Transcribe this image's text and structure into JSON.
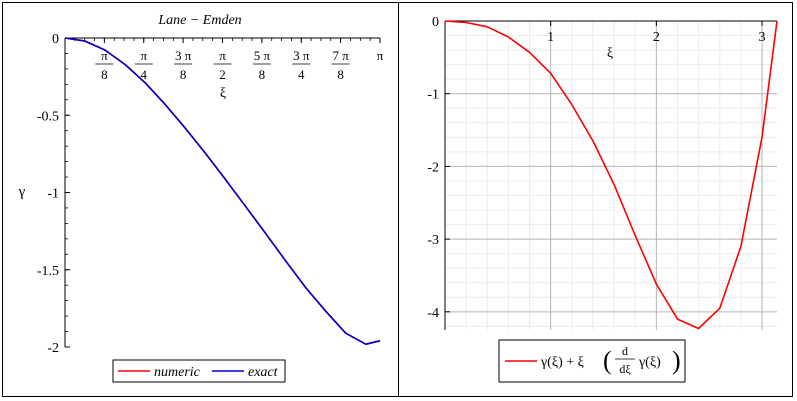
{
  "chart_data": [
    {
      "type": "line",
      "title": "Lane − Emden",
      "xlabel": "ξ",
      "ylabel": "γ",
      "xlim": [
        0,
        3.1416
      ],
      "ylim": [
        -2,
        0
      ],
      "x_ticks": [
        {
          "value": 0.3927,
          "num": "π",
          "den": "8"
        },
        {
          "value": 0.7854,
          "num": "π",
          "den": "4"
        },
        {
          "value": 1.1781,
          "num": "3 π",
          "den": "8"
        },
        {
          "value": 1.5708,
          "num": "π",
          "den": "2"
        },
        {
          "value": 1.9635,
          "num": "5 π",
          "den": "8"
        },
        {
          "value": 2.3562,
          "num": "3 π",
          "den": "4"
        },
        {
          "value": 2.7489,
          "num": "7 π",
          "den": "8"
        },
        {
          "value": 3.1416,
          "num": "π",
          "den": ""
        }
      ],
      "y_ticks": [
        {
          "value": 0,
          "label": "0"
        },
        {
          "value": -0.5,
          "label": "-0.5"
        },
        {
          "value": -1,
          "label": "-1"
        },
        {
          "value": -1.5,
          "label": "-1.5"
        },
        {
          "value": -2,
          "label": "-2"
        }
      ],
      "grid": false,
      "legend_position": "bottom",
      "series": [
        {
          "name": "numeric",
          "color": "#ff0000",
          "x": [
            0,
            0.2,
            0.4,
            0.6,
            0.8,
            1.0,
            1.2,
            1.4,
            1.6,
            1.8,
            2.0,
            2.2,
            2.4,
            2.6,
            2.8,
            3.0,
            3.1416
          ],
          "y": [
            0,
            -0.02,
            -0.078,
            -0.172,
            -0.29,
            -0.431,
            -0.584,
            -0.746,
            -0.915,
            -1.089,
            -1.264,
            -1.442,
            -1.615,
            -1.768,
            -1.911,
            -1.982,
            -1.96
          ]
        },
        {
          "name": "exact",
          "color": "#0000cc",
          "x": [
            0,
            0.2,
            0.4,
            0.6,
            0.8,
            1.0,
            1.2,
            1.4,
            1.6,
            1.8,
            2.0,
            2.2,
            2.4,
            2.6,
            2.8,
            3.0,
            3.1416
          ],
          "y": [
            0,
            -0.02,
            -0.078,
            -0.172,
            -0.29,
            -0.431,
            -0.584,
            -0.746,
            -0.915,
            -1.089,
            -1.264,
            -1.442,
            -1.615,
            -1.768,
            -1.911,
            -1.982,
            -1.96
          ]
        }
      ]
    },
    {
      "type": "line",
      "title": "",
      "xlabel": "ξ",
      "ylabel": "",
      "xlim": [
        0,
        3.1416
      ],
      "ylim": [
        -4.25,
        0
      ],
      "x_ticks": [
        {
          "value": 1,
          "label": "1"
        },
        {
          "value": 2,
          "label": "2"
        },
        {
          "value": 3,
          "label": "3"
        }
      ],
      "y_ticks": [
        {
          "value": 0,
          "label": "0"
        },
        {
          "value": -1,
          "label": "-1"
        },
        {
          "value": -2,
          "label": "-2"
        },
        {
          "value": -3,
          "label": "-3"
        },
        {
          "value": -4,
          "label": "-4"
        }
      ],
      "grid": true,
      "legend_position": "bottom",
      "series": [
        {
          "name": "γ(ξ) + ξ(d/dξ γ(ξ))",
          "color": "#ff0000",
          "x": [
            0,
            0.2,
            0.4,
            0.6,
            0.8,
            1.0,
            1.2,
            1.4,
            1.6,
            1.8,
            2.0,
            2.2,
            2.4,
            2.6,
            2.8,
            3.0,
            3.1416
          ],
          "y": [
            0,
            -0.02,
            -0.08,
            -0.22,
            -0.43,
            -0.72,
            -1.15,
            -1.65,
            -2.25,
            -2.95,
            -3.62,
            -4.1,
            -4.23,
            -3.95,
            -3.1,
            -1.6,
            0
          ]
        }
      ]
    }
  ],
  "legends": {
    "left_items": [
      "numeric",
      "exact"
    ],
    "right": {
      "part1": "γ(ξ) + ξ",
      "d_num": "d",
      "d_den": "dξ",
      "part2": "γ(ξ)"
    }
  }
}
